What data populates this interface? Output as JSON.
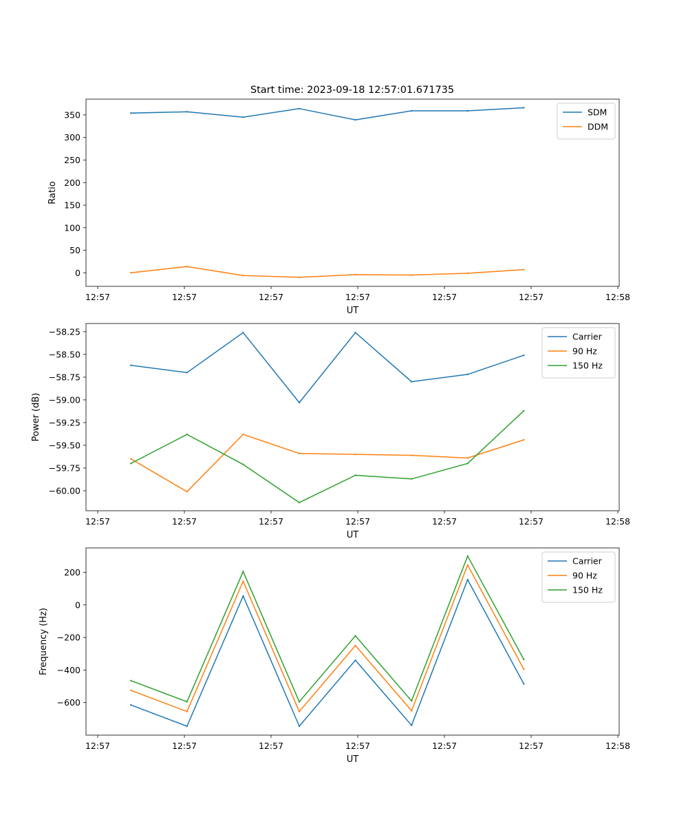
{
  "figure": {
    "title": "Start time: 2023-09-18 12:57:01.671735"
  },
  "chart_data": [
    {
      "type": "line",
      "xlabel": "UT",
      "ylabel": "Ratio",
      "x_tick_labels": [
        "12:57",
        "12:57",
        "12:57",
        "12:57",
        "12:57",
        "12:57",
        "12:58"
      ],
      "x": [
        1,
        2,
        3,
        4,
        5,
        6,
        7,
        8
      ],
      "xlim": [
        0.2,
        9.7
      ],
      "y_ticks": [
        0,
        50,
        100,
        150,
        200,
        250,
        300,
        350
      ],
      "ylim": [
        -30,
        385
      ],
      "legend_position": "top-right",
      "series": [
        {
          "name": "SDM",
          "color": "#1f77b4",
          "values": [
            354,
            357,
            345,
            364,
            339,
            359,
            359,
            366
          ]
        },
        {
          "name": "DDM",
          "color": "#ff7f0e",
          "values": [
            0,
            14,
            -6,
            -10,
            -4,
            -5,
            -1,
            7
          ]
        }
      ]
    },
    {
      "type": "line",
      "xlabel": "UT",
      "ylabel": "Power (dB)",
      "x_tick_labels": [
        "12:57",
        "12:57",
        "12:57",
        "12:57",
        "12:57",
        "12:57",
        "12:58"
      ],
      "x": [
        1,
        2,
        3,
        4,
        5,
        6,
        7,
        8
      ],
      "xlim": [
        0.2,
        9.7
      ],
      "y_ticks": [
        -60.0,
        -59.75,
        -59.5,
        -59.25,
        -59.0,
        -58.75,
        -58.5,
        -58.25
      ],
      "y_tick_labels": [
        "−60.00",
        "−59.75",
        "−59.50",
        "−59.25",
        "−59.00",
        "−58.75",
        "−58.50",
        "−58.25"
      ],
      "ylim": [
        -60.22,
        -58.16
      ],
      "legend_position": "top-right",
      "series": [
        {
          "name": "Carrier",
          "color": "#1f77b4",
          "values": [
            -58.62,
            -58.7,
            -58.26,
            -59.03,
            -58.26,
            -58.8,
            -58.72,
            -58.51
          ]
        },
        {
          "name": "90 Hz",
          "color": "#ff7f0e",
          "values": [
            -59.65,
            -60.01,
            -59.38,
            -59.59,
            -59.6,
            -59.61,
            -59.64,
            -59.44
          ]
        },
        {
          "name": "150 Hz",
          "color": "#2ca02c",
          "values": [
            -59.7,
            -59.38,
            -59.71,
            -60.13,
            -59.83,
            -59.87,
            -59.7,
            -59.12
          ]
        }
      ]
    },
    {
      "type": "line",
      "xlabel": "UT",
      "ylabel": "Frequency (Hz)",
      "x_tick_labels": [
        "12:57",
        "12:57",
        "12:57",
        "12:57",
        "12:57",
        "12:57",
        "12:58"
      ],
      "x": [
        1,
        2,
        3,
        4,
        5,
        6,
        7,
        8
      ],
      "xlim": [
        0.2,
        9.7
      ],
      "y_ticks": [
        -600,
        -400,
        -200,
        0,
        200
      ],
      "y_tick_labels": [
        "−600",
        "−400",
        "−200",
        "0",
        "200"
      ],
      "ylim": [
        -800,
        350
      ],
      "legend_position": "top-right",
      "series": [
        {
          "name": "Carrier",
          "color": "#1f77b4",
          "values": [
            -615,
            -745,
            55,
            -745,
            -340,
            -740,
            155,
            -485
          ]
        },
        {
          "name": "90 Hz",
          "color": "#ff7f0e",
          "values": [
            -525,
            -655,
            145,
            -655,
            -250,
            -650,
            245,
            -395
          ]
        },
        {
          "name": "150 Hz",
          "color": "#2ca02c",
          "values": [
            -465,
            -595,
            205,
            -595,
            -190,
            -590,
            300,
            -335
          ]
        }
      ]
    }
  ]
}
